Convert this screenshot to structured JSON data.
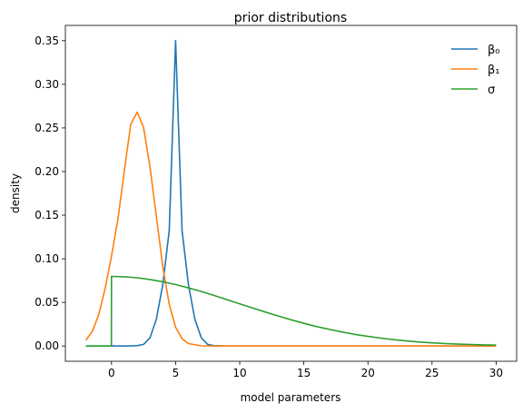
{
  "chart_data": {
    "type": "line",
    "title": "prior distributions",
    "xlabel": "model parameters",
    "ylabel": "density",
    "xlim": [
      -3.6,
      31.6
    ],
    "ylim": [
      -0.0175,
      0.3675
    ],
    "xticks": [
      0,
      5,
      10,
      15,
      20,
      25,
      30
    ],
    "yticks": [
      0.0,
      0.05,
      0.1,
      0.15,
      0.2,
      0.25,
      0.3,
      0.35
    ],
    "xtick_labels": [
      "0",
      "5",
      "10",
      "15",
      "20",
      "25",
      "30"
    ],
    "ytick_labels": [
      "0.00",
      "0.05",
      "0.10",
      "0.15",
      "0.20",
      "0.25",
      "0.30",
      "0.35"
    ],
    "grid": false,
    "legend_placement": "top-right",
    "series": [
      {
        "name": "β₀",
        "color": "#1f77b4",
        "x": [
          -2,
          -1,
          0,
          1,
          2,
          2.5,
          3,
          3.5,
          4,
          4.5,
          5,
          5.5,
          6,
          6.5,
          7,
          7.5,
          8,
          9,
          10,
          15,
          20,
          25,
          30
        ],
        "y": [
          0.0,
          0.0,
          0.0,
          0.0,
          0.0004,
          0.0019,
          0.0094,
          0.0307,
          0.0705,
          0.1325,
          0.35,
          0.1325,
          0.0705,
          0.0307,
          0.0094,
          0.0019,
          0.0004,
          0.0,
          0.0,
          0.0,
          0.0,
          0.0,
          0.0
        ]
      },
      {
        "name": "β₁",
        "color": "#ff7f0e",
        "x": [
          -2,
          -1.5,
          -1,
          -0.5,
          0,
          0.5,
          1,
          1.5,
          2,
          2.5,
          3,
          3.5,
          4,
          4.5,
          5,
          5.5,
          6,
          7,
          8,
          10,
          15,
          20,
          25,
          30
        ],
        "y": [
          0.0066,
          0.0167,
          0.0359,
          0.0659,
          0.1031,
          0.1456,
          0.2006,
          0.2542,
          0.268,
          0.2506,
          0.2052,
          0.1486,
          0.0911,
          0.0476,
          0.0215,
          0.0083,
          0.0028,
          0.0002,
          0.0,
          0.0,
          0.0,
          0.0,
          0.0,
          0.0
        ]
      },
      {
        "name": "σ",
        "color": "#2ca02c",
        "x": [
          -2,
          -1,
          -0.01,
          0,
          1,
          2,
          3,
          4,
          5,
          6,
          7,
          8,
          9,
          10,
          11,
          12,
          13,
          14,
          15,
          16,
          17,
          18,
          19,
          20,
          21,
          22,
          23,
          24,
          25,
          26,
          27,
          28,
          29,
          30
        ],
        "y": [
          0.0,
          0.0,
          0.0,
          0.0798,
          0.0794,
          0.0782,
          0.0763,
          0.0737,
          0.0704,
          0.0666,
          0.0625,
          0.0579,
          0.0532,
          0.0484,
          0.0436,
          0.0389,
          0.0344,
          0.0301,
          0.026,
          0.0223,
          0.019,
          0.016,
          0.0133,
          0.011,
          0.009,
          0.0073,
          0.0058,
          0.0046,
          0.0036,
          0.0028,
          0.0022,
          0.0017,
          0.0013,
          0.001
        ]
      }
    ]
  }
}
